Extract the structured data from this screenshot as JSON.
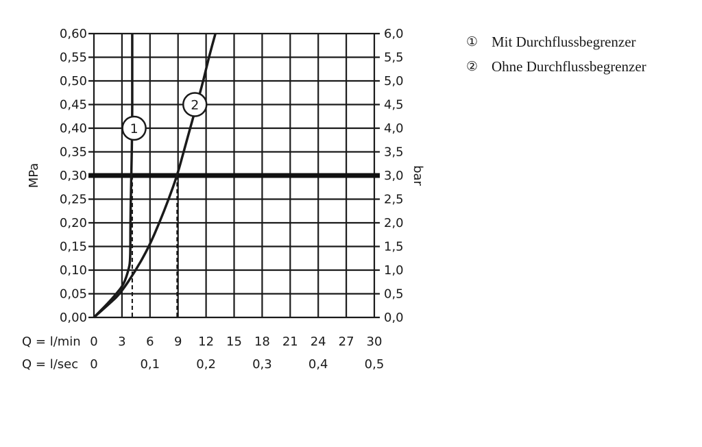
{
  "chart_data": {
    "type": "line",
    "xlabel": "Q = l/min",
    "xlabel2": "Q = l/sec",
    "ylabel_left": "MPa",
    "ylabel_right": "bar",
    "xlim": [
      0,
      30
    ],
    "ylim": [
      0,
      0.6
    ],
    "grid": true,
    "x_ticks": [
      "0",
      "3",
      "6",
      "9",
      "12",
      "15",
      "18",
      "21",
      "24",
      "27",
      "30"
    ],
    "x2_ticks": [
      {
        "at": 0,
        "label": "0"
      },
      {
        "at": 6,
        "label": "0,1"
      },
      {
        "at": 12,
        "label": "0,2"
      },
      {
        "at": 18,
        "label": "0,3"
      },
      {
        "at": 24,
        "label": "0,4"
      },
      {
        "at": 30,
        "label": "0,5"
      }
    ],
    "y_ticks_left": [
      "0,00",
      "0,05",
      "0,10",
      "0,15",
      "0,20",
      "0,25",
      "0,30",
      "0,35",
      "0,40",
      "0,45",
      "0,50",
      "0,55",
      "0,60"
    ],
    "y_ticks_right": [
      "0,0",
      "0,5",
      "1,0",
      "1,5",
      "2,0",
      "2,5",
      "3,0",
      "3,5",
      "4,0",
      "4,5",
      "5,0",
      "5,5",
      "6,0"
    ],
    "reference_line": {
      "y": 0.3
    },
    "series": [
      {
        "label": "1",
        "label_at": [
          4.3,
          0.4
        ],
        "points": [
          [
            0,
            0
          ],
          [
            1.5,
            0.03
          ],
          [
            2.4,
            0.05
          ],
          [
            3.2,
            0.07
          ],
          [
            3.7,
            0.1
          ],
          [
            3.9,
            0.12
          ],
          [
            3.9,
            0.2
          ],
          [
            4.0,
            0.3
          ],
          [
            4.1,
            0.4
          ],
          [
            4.1,
            0.5
          ],
          [
            4.1,
            0.6
          ]
        ],
        "drop_line_x": 4.1
      },
      {
        "label": "2",
        "label_at": [
          10.8,
          0.45
        ],
        "points": [
          [
            0,
            0
          ],
          [
            1.7,
            0.03
          ],
          [
            2.8,
            0.05
          ],
          [
            4.5,
            0.1
          ],
          [
            5.9,
            0.15
          ],
          [
            7.0,
            0.2
          ],
          [
            8.0,
            0.25
          ],
          [
            8.9,
            0.3
          ],
          [
            9.6,
            0.35
          ],
          [
            10.3,
            0.4
          ],
          [
            11.0,
            0.45
          ],
          [
            11.7,
            0.5
          ],
          [
            12.3,
            0.55
          ],
          [
            13.0,
            0.6
          ]
        ],
        "drop_line_x": 8.9
      }
    ]
  },
  "legend": {
    "items": [
      {
        "num": "①",
        "text": "Mit Durchflussbegrenzer"
      },
      {
        "num": "②",
        "text": "Ohne Durchflussbegrenzer"
      }
    ]
  }
}
